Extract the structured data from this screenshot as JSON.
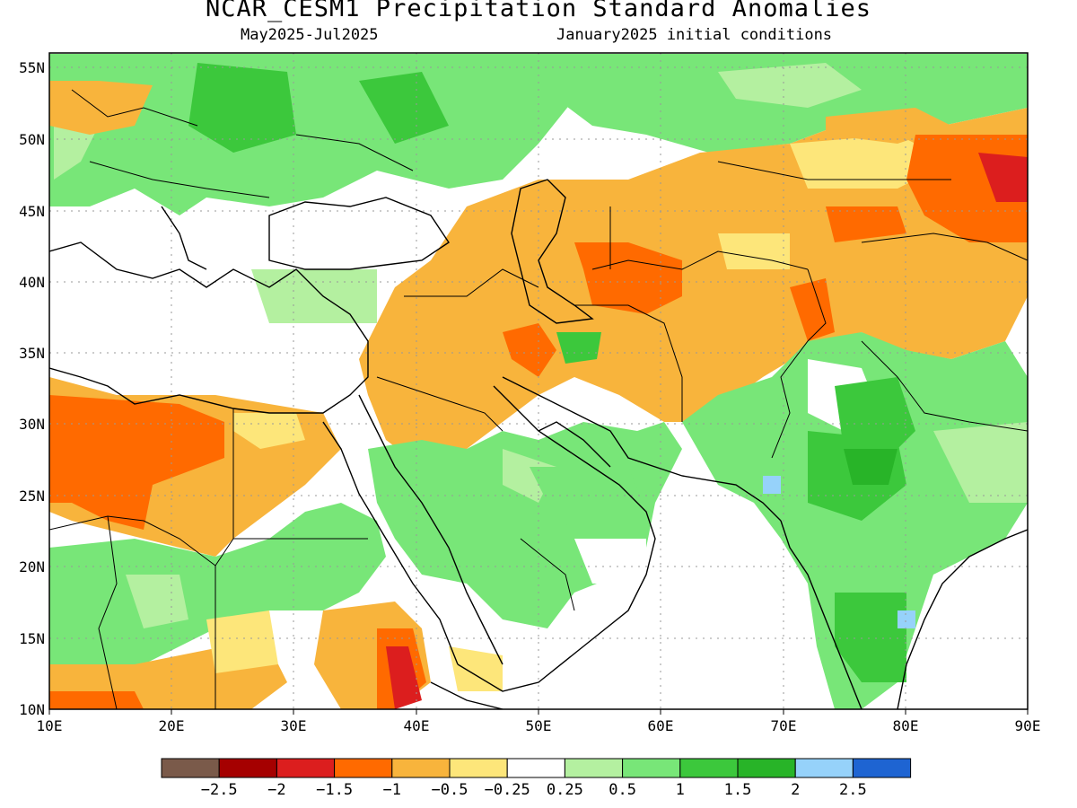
{
  "title": "NCAR_CESM1 Precipitation Standard Anomalies",
  "subtitle_left": "May2025-Jul2025",
  "subtitle_right": "January2025 initial conditions",
  "map": {
    "lon_range": [
      10,
      90
    ],
    "lat_range": [
      10,
      56
    ],
    "lon_ticks": [
      "10E",
      "20E",
      "30E",
      "40E",
      "50E",
      "60E",
      "70E",
      "80E",
      "90E"
    ],
    "lat_ticks": [
      "55N",
      "50N",
      "45N",
      "40N",
      "35N",
      "30N",
      "25N",
      "20N",
      "15N",
      "10N"
    ],
    "grid": "dotted"
  },
  "colorbar": {
    "colors": [
      "#7a5a4a",
      "#a50000",
      "#dc1e1e",
      "#ff6a00",
      "#f8b43c",
      "#fde67a",
      "#ffffff",
      "#b4f0a0",
      "#78e678",
      "#3cc83c",
      "#28b428",
      "#96d2fa",
      "#1e64d2"
    ],
    "labels": [
      "-2.5",
      "-2",
      "-1.5",
      "-1",
      "-0.5",
      "-0.25",
      "0.25",
      "0.5",
      "1",
      "1.5",
      "2",
      "2.5"
    ]
  }
}
